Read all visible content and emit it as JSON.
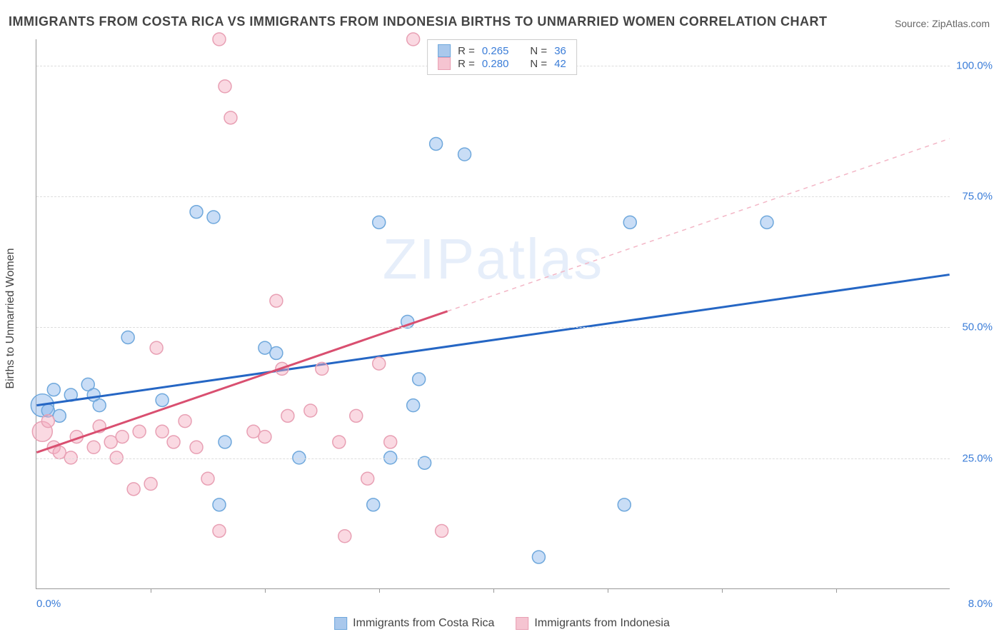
{
  "title": "IMMIGRANTS FROM COSTA RICA VS IMMIGRANTS FROM INDONESIA BIRTHS TO UNMARRIED WOMEN CORRELATION CHART",
  "source_label": "Source: ZipAtlas.com",
  "watermark": "ZIPatlas",
  "ylabel": "Births to Unmarried Women",
  "chart": {
    "type": "scatter",
    "xlim": [
      0,
      8
    ],
    "ylim": [
      0,
      105
    ],
    "x_ticks_minor": [
      1,
      2,
      3,
      4,
      5,
      6,
      7
    ],
    "y_ticks": [
      25,
      50,
      75,
      100
    ],
    "y_tick_labels": [
      "25.0%",
      "50.0%",
      "75.0%",
      "100.0%"
    ],
    "x_left_label": "0.0%",
    "x_right_label": "8.0%",
    "grid_color": "#dddddd",
    "axis_color": "#999999",
    "background_color": "#ffffff",
    "label_color": "#3b7dd8",
    "text_color": "#444444"
  },
  "series": [
    {
      "name": "Immigrants from Costa Rica",
      "color_fill": "rgba(135,180,235,0.45)",
      "color_stroke": "#6fa8dc",
      "swatch_fill": "#a9c8ec",
      "swatch_stroke": "#6fa8dc",
      "R": "0.265",
      "N": "36",
      "marker_radius": 9,
      "trend": {
        "x1": 0,
        "y1": 35,
        "x2": 8,
        "y2": 60,
        "solid_until_x": 8,
        "color": "#2566c4",
        "width": 3
      },
      "points": [
        {
          "x": 0.05,
          "y": 35,
          "r": 16
        },
        {
          "x": 0.1,
          "y": 34
        },
        {
          "x": 0.15,
          "y": 38
        },
        {
          "x": 0.2,
          "y": 33
        },
        {
          "x": 0.3,
          "y": 37
        },
        {
          "x": 0.45,
          "y": 39
        },
        {
          "x": 0.55,
          "y": 35
        },
        {
          "x": 0.5,
          "y": 37
        },
        {
          "x": 0.8,
          "y": 48
        },
        {
          "x": 1.1,
          "y": 36
        },
        {
          "x": 1.4,
          "y": 72
        },
        {
          "x": 1.55,
          "y": 71
        },
        {
          "x": 1.6,
          "y": 16
        },
        {
          "x": 1.65,
          "y": 28
        },
        {
          "x": 2.0,
          "y": 46
        },
        {
          "x": 2.1,
          "y": 45
        },
        {
          "x": 2.3,
          "y": 25
        },
        {
          "x": 3.0,
          "y": 70
        },
        {
          "x": 2.95,
          "y": 16
        },
        {
          "x": 3.1,
          "y": 25
        },
        {
          "x": 3.25,
          "y": 51
        },
        {
          "x": 3.3,
          "y": 35
        },
        {
          "x": 3.4,
          "y": 24
        },
        {
          "x": 3.5,
          "y": 85
        },
        {
          "x": 3.75,
          "y": 83
        },
        {
          "x": 3.35,
          "y": 40
        },
        {
          "x": 4.4,
          "y": 6
        },
        {
          "x": 5.2,
          "y": 70
        },
        {
          "x": 5.15,
          "y": 16
        },
        {
          "x": 6.4,
          "y": 70
        }
      ]
    },
    {
      "name": "Immigrants from Indonesia",
      "color_fill": "rgba(244,170,190,0.45)",
      "color_stroke": "#e8a0b4",
      "swatch_fill": "#f5c4d1",
      "swatch_stroke": "#e8a0b4",
      "R": "0.280",
      "N": "42",
      "marker_radius": 9,
      "trend": {
        "x1": 0,
        "y1": 26,
        "x2": 8,
        "y2": 86,
        "solid_until_x": 3.6,
        "color": "#d94f70",
        "width": 3,
        "dash_color": "#f3b6c6"
      },
      "points": [
        {
          "x": 0.05,
          "y": 30,
          "r": 14
        },
        {
          "x": 0.1,
          "y": 32
        },
        {
          "x": 0.15,
          "y": 27
        },
        {
          "x": 0.2,
          "y": 26
        },
        {
          "x": 0.3,
          "y": 25
        },
        {
          "x": 0.35,
          "y": 29
        },
        {
          "x": 0.5,
          "y": 27
        },
        {
          "x": 0.55,
          "y": 31
        },
        {
          "x": 0.65,
          "y": 28
        },
        {
          "x": 0.7,
          "y": 25
        },
        {
          "x": 0.75,
          "y": 29
        },
        {
          "x": 0.85,
          "y": 19
        },
        {
          "x": 0.9,
          "y": 30
        },
        {
          "x": 1.0,
          "y": 20
        },
        {
          "x": 1.05,
          "y": 46
        },
        {
          "x": 1.1,
          "y": 30
        },
        {
          "x": 1.2,
          "y": 28
        },
        {
          "x": 1.3,
          "y": 32
        },
        {
          "x": 1.4,
          "y": 27
        },
        {
          "x": 1.5,
          "y": 21
        },
        {
          "x": 1.6,
          "y": 105
        },
        {
          "x": 1.65,
          "y": 96
        },
        {
          "x": 1.7,
          "y": 90
        },
        {
          "x": 1.6,
          "y": 11
        },
        {
          "x": 1.9,
          "y": 30
        },
        {
          "x": 2.0,
          "y": 29
        },
        {
          "x": 2.1,
          "y": 55
        },
        {
          "x": 2.15,
          "y": 42
        },
        {
          "x": 2.2,
          "y": 33
        },
        {
          "x": 2.4,
          "y": 34
        },
        {
          "x": 2.5,
          "y": 42
        },
        {
          "x": 2.65,
          "y": 28
        },
        {
          "x": 2.7,
          "y": 10
        },
        {
          "x": 2.8,
          "y": 33
        },
        {
          "x": 2.9,
          "y": 21
        },
        {
          "x": 3.0,
          "y": 43
        },
        {
          "x": 3.1,
          "y": 28
        },
        {
          "x": 3.3,
          "y": 105
        },
        {
          "x": 3.55,
          "y": 11
        }
      ]
    }
  ],
  "legend_top": {
    "r_label": "R =",
    "n_label": "N ="
  }
}
